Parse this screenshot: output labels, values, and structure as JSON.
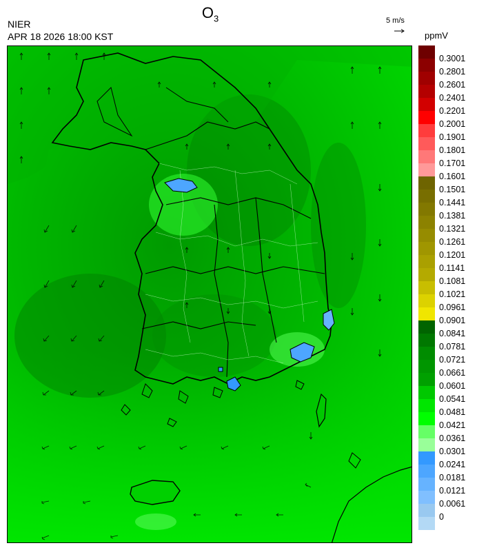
{
  "header": {
    "species_main": "O",
    "species_sub": "3",
    "agency": "NIER",
    "datetime": "APR 18 2026 18:00 KST",
    "vector_label": "5 m/s",
    "unit": "ppmV"
  },
  "legend": {
    "labels": [
      "0.3001",
      "0.2801",
      "0.2601",
      "0.2401",
      "0.2201",
      "0.2001",
      "0.1901",
      "0.1801",
      "0.1701",
      "0.1601",
      "0.1501",
      "0.1441",
      "0.1381",
      "0.1321",
      "0.1261",
      "0.1201",
      "0.1141",
      "0.1081",
      "0.1021",
      "0.0961",
      "0.0901",
      "0.0841",
      "0.0781",
      "0.0721",
      "0.0661",
      "0.0601",
      "0.0541",
      "0.0481",
      "0.0421",
      "0.0361",
      "0.0301",
      "0.0241",
      "0.0181",
      "0.0121",
      "0.0061",
      "0"
    ],
    "colors": [
      "#6e0000",
      "#8c0000",
      "#a00000",
      "#b40000",
      "#d20000",
      "#ff0000",
      "#ff3c3c",
      "#ff5a5a",
      "#ff7878",
      "#ff9999",
      "#6e6400",
      "#786e00",
      "#827800",
      "#8c8200",
      "#968c00",
      "#a09600",
      "#aaa000",
      "#b4aa00",
      "#c8be00",
      "#dcd200",
      "#f0e600",
      "#006400",
      "#007800",
      "#008c00",
      "#009600",
      "#00a000",
      "#00c800",
      "#00e600",
      "#00ff00",
      "#66ff66",
      "#99ff99",
      "#3399ff",
      "#4da6ff",
      "#66b3ff",
      "#80bfff",
      "#99c9f0",
      "#b3d9f5"
    ]
  }
}
